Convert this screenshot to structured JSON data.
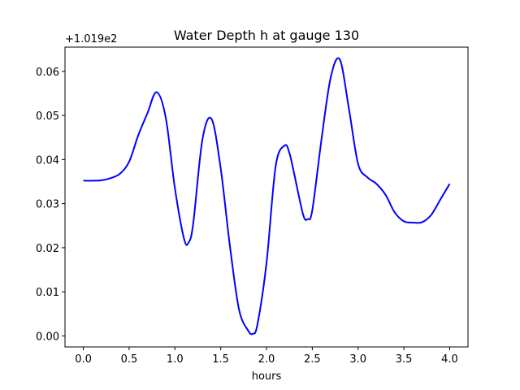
{
  "chart_data": {
    "type": "line",
    "title": "Water Depth h at gauge 130",
    "xlabel": "hours",
    "ylabel": "",
    "y_offset_label": "+1.019e2",
    "xlim": [
      -0.2,
      4.2
    ],
    "ylim": [
      -0.0025,
      0.0655
    ],
    "xticks": [
      0.0,
      0.5,
      1.0,
      1.5,
      2.0,
      2.5,
      3.0,
      3.5,
      4.0
    ],
    "xtick_labels": [
      "0.0",
      "0.5",
      "1.0",
      "1.5",
      "2.0",
      "2.5",
      "3.0",
      "3.5",
      "4.0"
    ],
    "yticks": [
      0.0,
      0.01,
      0.02,
      0.03,
      0.04,
      0.05,
      0.06
    ],
    "ytick_labels": [
      "0.00",
      "0.01",
      "0.02",
      "0.03",
      "0.04",
      "0.05",
      "0.06"
    ],
    "grid": false,
    "line_color": "#0000ff",
    "series": [
      {
        "x": [
          0.0,
          0.1,
          0.2,
          0.3,
          0.4,
          0.5,
          0.6,
          0.7,
          0.8,
          0.9,
          1.0,
          1.1,
          1.15,
          1.2,
          1.3,
          1.4,
          1.5,
          1.6,
          1.7,
          1.8,
          1.85,
          1.9,
          2.0,
          2.1,
          2.2,
          2.25,
          2.3,
          2.4,
          2.45,
          2.5,
          2.6,
          2.7,
          2.8,
          2.9,
          3.0,
          3.1,
          3.2,
          3.3,
          3.4,
          3.5,
          3.6,
          3.7,
          3.8,
          3.9,
          4.0
        ],
        "y": [
          0.0352,
          0.0352,
          0.0353,
          0.0358,
          0.0368,
          0.0395,
          0.0455,
          0.0505,
          0.0553,
          0.0495,
          0.0335,
          0.022,
          0.0212,
          0.0255,
          0.0445,
          0.0492,
          0.038,
          0.0205,
          0.006,
          0.0012,
          0.0005,
          0.0025,
          0.0165,
          0.0385,
          0.0432,
          0.0415,
          0.037,
          0.0275,
          0.0265,
          0.0285,
          0.0445,
          0.0585,
          0.0627,
          0.0515,
          0.039,
          0.036,
          0.0345,
          0.032,
          0.028,
          0.026,
          0.0257,
          0.0258,
          0.0275,
          0.031,
          0.0345
        ]
      }
    ]
  }
}
